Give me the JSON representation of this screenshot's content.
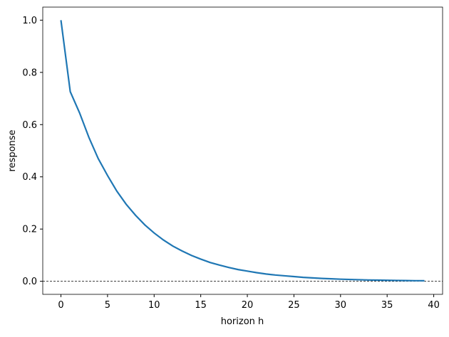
{
  "chart_data": {
    "type": "line",
    "xlabel": "horizon h",
    "ylabel": "response",
    "x": [
      0,
      1,
      2,
      3,
      4,
      5,
      6,
      7,
      8,
      9,
      10,
      11,
      12,
      13,
      14,
      15,
      16,
      17,
      18,
      19,
      20,
      21,
      22,
      23,
      24,
      25,
      26,
      27,
      28,
      29,
      30,
      31,
      32,
      33,
      34,
      35,
      36,
      37,
      38,
      39
    ],
    "series": [
      {
        "color": "#1f77b4",
        "values": [
          1.0,
          0.726,
          0.645,
          0.551,
          0.47,
          0.405,
          0.345,
          0.295,
          0.253,
          0.216,
          0.185,
          0.158,
          0.135,
          0.116,
          0.099,
          0.085,
          0.072,
          0.062,
          0.053,
          0.045,
          0.039,
          0.033,
          0.028,
          0.024,
          0.021,
          0.018,
          0.015,
          0.013,
          0.011,
          0.0095,
          0.008,
          0.007,
          0.006,
          0.005,
          0.0044,
          0.0037,
          0.0032,
          0.0027,
          0.0023,
          0.002
        ]
      }
    ],
    "xlim": [
      -1.95,
      40.95
    ],
    "ylim": [
      -0.05,
      1.05
    ],
    "xticks": [
      0,
      5,
      10,
      15,
      20,
      25,
      30,
      35,
      40
    ],
    "yticks": [
      {
        "value": 0,
        "label": "0.0"
      },
      0.2,
      0.4,
      0.6,
      0.8,
      {
        "value": 1,
        "label": "1.0"
      }
    ],
    "hline": 0
  }
}
